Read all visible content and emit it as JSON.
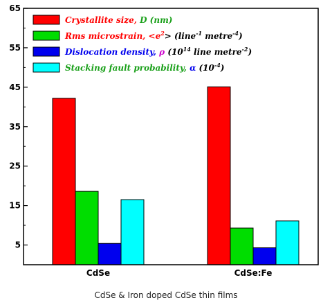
{
  "chart_data": {
    "type": "bar",
    "title": "",
    "xlabel": "CdSe & Iron doped CdSe thin films",
    "ylabel": "",
    "ylim": [
      0,
      65
    ],
    "yticks": [
      5,
      15,
      25,
      35,
      45,
      55,
      65
    ],
    "grid": false,
    "legend_position": "top-left",
    "categories": [
      "CdSe",
      "CdSe:Fe"
    ],
    "series": [
      {
        "name": "Crystallite size, D (nm)",
        "color": "#ff0000",
        "label_color": "#ff0000",
        "legend_parts": [
          {
            "text": "Crystallite size, ",
            "color": "#ff0000"
          },
          {
            "text": "D (nm)",
            "color": "#1aa01a"
          }
        ],
        "values": [
          42.2,
          45.1
        ]
      },
      {
        "name": "Rms microstrain, <e2> (line-1 metre-4)",
        "color": "#00dd00",
        "legend_parts": [
          {
            "text": "Rms microstrain, <e",
            "color": "#ff0000"
          },
          {
            "text": "2",
            "color": "#ff0000",
            "sup": true
          },
          {
            "text": "> (line",
            "color": "#000000"
          },
          {
            "text": "-1",
            "color": "#000000",
            "sup": true
          },
          {
            "text": " metre",
            "color": "#000000"
          },
          {
            "text": "-4",
            "color": "#000000",
            "sup": true
          },
          {
            "text": ")",
            "color": "#000000"
          }
        ],
        "values": [
          18.6,
          9.3
        ]
      },
      {
        "name": "Dislocation density, ρ (1014 line metre-2)",
        "color": "#0000ee",
        "legend_parts": [
          {
            "text": "Dislocation density, ",
            "color": "#0000ee"
          },
          {
            "text": "ρ ",
            "color": "#cc00cc"
          },
          {
            "text": "(10",
            "color": "#000000"
          },
          {
            "text": "14",
            "color": "#000000",
            "sup": true
          },
          {
            "text": " line metre",
            "color": "#000000"
          },
          {
            "text": "-2",
            "color": "#000000",
            "sup": true
          },
          {
            "text": ")",
            "color": "#000000"
          }
        ],
        "values": [
          5.4,
          4.3
        ]
      },
      {
        "name": "Stacking fault probability, α (10-4)",
        "color": "#00ffff",
        "legend_parts": [
          {
            "text": "Stacking fault probability, ",
            "color": "#1aa01a"
          },
          {
            "text": "α ",
            "color": "#0000ee"
          },
          {
            "text": "(10",
            "color": "#000000"
          },
          {
            "text": "-4",
            "color": "#000000",
            "sup": true
          },
          {
            "text": ")",
            "color": "#000000"
          }
        ],
        "values": [
          16.5,
          11.1
        ]
      }
    ]
  }
}
